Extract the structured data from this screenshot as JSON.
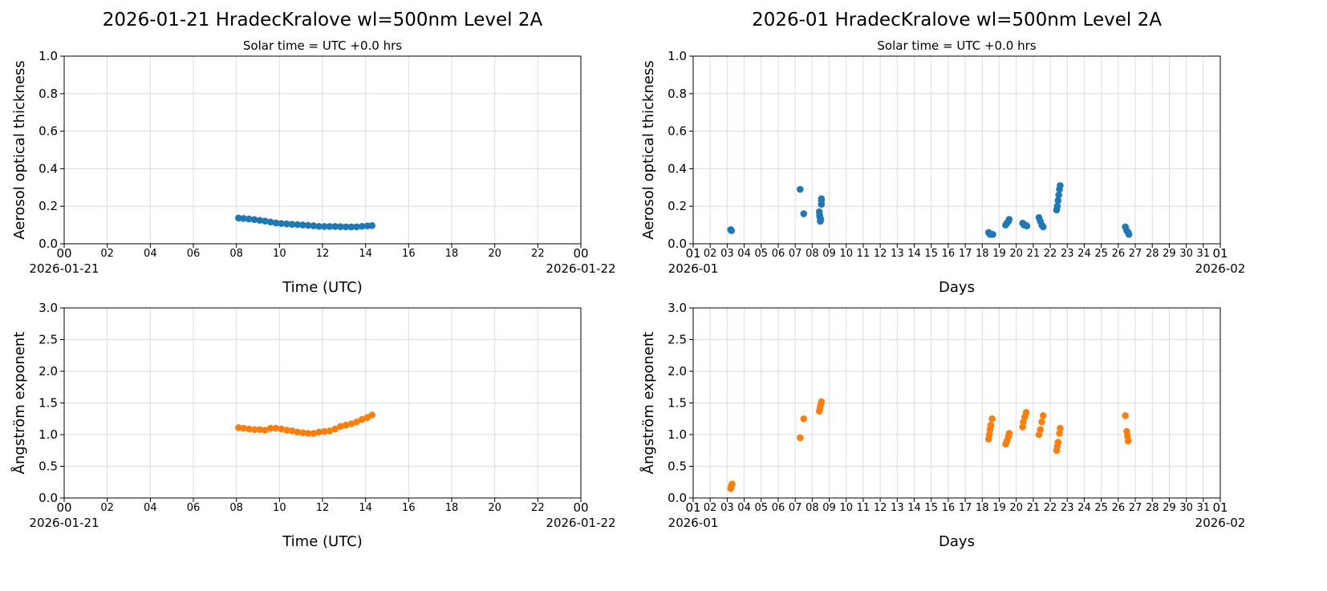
{
  "colors": {
    "aod": "#1f77b4",
    "angstrom": "#ff7f0e"
  },
  "chart_data": [
    {
      "type": "scatter",
      "panel": "left-top",
      "title": "2026-01-21  HradecKralove  wl=500nm  Level 2A",
      "subtitle": "Solar time = UTC +0.0 hrs",
      "xlabel": "Time (UTC)",
      "ylabel": "Aerosol optical thickness",
      "xlim": [
        "00:00",
        "24:00"
      ],
      "ylim": [
        0,
        1
      ],
      "grid": true,
      "xticks": [
        "00",
        "02",
        "04",
        "06",
        "08",
        "10",
        "12",
        "14",
        "16",
        "18",
        "20",
        "22",
        "00"
      ],
      "xdates": [
        "2026-01-21",
        "2026-01-22"
      ],
      "yticks": [
        "0.0",
        "0.2",
        "0.4",
        "0.6",
        "0.8",
        "1.0"
      ],
      "points": [
        [
          "08:06",
          0.137
        ],
        [
          "08:20",
          0.135
        ],
        [
          "08:35",
          0.132
        ],
        [
          "08:50",
          0.129
        ],
        [
          "09:05",
          0.125
        ],
        [
          "09:20",
          0.121
        ],
        [
          "09:35",
          0.116
        ],
        [
          "09:50",
          0.111
        ],
        [
          "10:05",
          0.108
        ],
        [
          "10:20",
          0.106
        ],
        [
          "10:35",
          0.104
        ],
        [
          "10:50",
          0.102
        ],
        [
          "11:05",
          0.1
        ],
        [
          "11:20",
          0.098
        ],
        [
          "11:35",
          0.096
        ],
        [
          "11:50",
          0.093
        ],
        [
          "12:05",
          0.092
        ],
        [
          "12:20",
          0.092
        ],
        [
          "12:35",
          0.092
        ],
        [
          "12:50",
          0.091
        ],
        [
          "13:05",
          0.09
        ],
        [
          "13:20",
          0.09
        ],
        [
          "13:35",
          0.09
        ],
        [
          "13:50",
          0.093
        ],
        [
          "14:05",
          0.095
        ],
        [
          "14:18",
          0.097
        ]
      ]
    },
    {
      "type": "scatter",
      "panel": "right-top",
      "title": "2026-01  HradecKralove  wl=500nm  Level 2A",
      "subtitle": "Solar time = UTC +0.0 hrs",
      "xlabel": "Days",
      "ylabel": "Aerosol optical thickness",
      "xlim": [
        "2026-01-01",
        "2026-02-01"
      ],
      "ylim": [
        0,
        1
      ],
      "grid": true,
      "xticks": [
        "01",
        "02",
        "03",
        "04",
        "05",
        "06",
        "07",
        "08",
        "09",
        "10",
        "11",
        "12",
        "13",
        "14",
        "15",
        "16",
        "17",
        "18",
        "19",
        "20",
        "21",
        "22",
        "23",
        "24",
        "25",
        "26",
        "27",
        "28",
        "29",
        "30",
        "31",
        "01"
      ],
      "xdates": [
        "2026-01",
        "2026-02"
      ],
      "yticks": [
        "0.0",
        "0.2",
        "0.4",
        "0.6",
        "0.8",
        "1.0"
      ],
      "points": [
        [
          "2026-01-03 05:00",
          0.075
        ],
        [
          "2026-01-03 06:00",
          0.07
        ],
        [
          "2026-01-07 07:00",
          0.29
        ],
        [
          "2026-01-07 12:00",
          0.16
        ],
        [
          "2026-01-08 10:00",
          0.17
        ],
        [
          "2026-01-08 10:30",
          0.15
        ],
        [
          "2026-01-08 11:00",
          0.14
        ],
        [
          "2026-01-08 11:30",
          0.12
        ],
        [
          "2026-01-08 12:00",
          0.13
        ],
        [
          "2026-01-08 13:00",
          0.21
        ],
        [
          "2026-01-08 13:00",
          0.24
        ],
        [
          "2026-01-08 13:00",
          0.23
        ],
        [
          "2026-01-18 09:00",
          0.06
        ],
        [
          "2026-01-18 11:00",
          0.05
        ],
        [
          "2026-01-18 13:00",
          0.05
        ],
        [
          "2026-01-18 15:00",
          0.05
        ],
        [
          "2026-01-19 09:00",
          0.1
        ],
        [
          "2026-01-19 11:00",
          0.11
        ],
        [
          "2026-01-19 13:00",
          0.12
        ],
        [
          "2026-01-19 14:00",
          0.13
        ],
        [
          "2026-01-20 09:00",
          0.11
        ],
        [
          "2026-01-20 11:00",
          0.1
        ],
        [
          "2026-01-20 13:00",
          0.1
        ],
        [
          "2026-01-20 15:00",
          0.095
        ],
        [
          "2026-01-21 08:00",
          0.14
        ],
        [
          "2026-01-21 10:00",
          0.12
        ],
        [
          "2026-01-21 12:00",
          0.1
        ],
        [
          "2026-01-21 14:00",
          0.09
        ],
        [
          "2026-01-22 09:00",
          0.18
        ],
        [
          "2026-01-22 10:00",
          0.2
        ],
        [
          "2026-01-22 11:00",
          0.23
        ],
        [
          "2026-01-22 12:00",
          0.26
        ],
        [
          "2026-01-22 13:00",
          0.29
        ],
        [
          "2026-01-22 14:00",
          0.31
        ],
        [
          "2026-01-26 10:00",
          0.09
        ],
        [
          "2026-01-26 12:00",
          0.07
        ],
        [
          "2026-01-26 14:00",
          0.06
        ],
        [
          "2026-01-26 15:00",
          0.05
        ]
      ]
    },
    {
      "type": "scatter",
      "panel": "left-bottom",
      "xlabel": "Time (UTC)",
      "ylabel": "Ångström exponent",
      "xlim": [
        "00:00",
        "24:00"
      ],
      "ylim": [
        0,
        3
      ],
      "grid": true,
      "xticks": [
        "00",
        "02",
        "04",
        "06",
        "08",
        "10",
        "12",
        "14",
        "16",
        "18",
        "20",
        "22",
        "00"
      ],
      "xdates": [
        "2026-01-21",
        "2026-01-22"
      ],
      "yticks": [
        "0.0",
        "0.5",
        "1.0",
        "1.5",
        "2.0",
        "2.5",
        "3.0"
      ],
      "points": [
        [
          "08:06",
          1.11
        ],
        [
          "08:20",
          1.1
        ],
        [
          "08:35",
          1.09
        ],
        [
          "08:50",
          1.08
        ],
        [
          "09:05",
          1.08
        ],
        [
          "09:20",
          1.07
        ],
        [
          "09:35",
          1.1
        ],
        [
          "09:50",
          1.1
        ],
        [
          "10:05",
          1.09
        ],
        [
          "10:20",
          1.07
        ],
        [
          "10:35",
          1.06
        ],
        [
          "10:50",
          1.04
        ],
        [
          "11:05",
          1.03
        ],
        [
          "11:20",
          1.02
        ],
        [
          "11:35",
          1.02
        ],
        [
          "11:50",
          1.04
        ],
        [
          "12:05",
          1.05
        ],
        [
          "12:20",
          1.06
        ],
        [
          "12:35",
          1.09
        ],
        [
          "12:50",
          1.13
        ],
        [
          "13:05",
          1.15
        ],
        [
          "13:20",
          1.17
        ],
        [
          "13:35",
          1.2
        ],
        [
          "13:50",
          1.24
        ],
        [
          "14:05",
          1.27
        ],
        [
          "14:18",
          1.31
        ]
      ]
    },
    {
      "type": "scatter",
      "panel": "right-bottom",
      "xlabel": "Days",
      "ylabel": "Ångström exponent",
      "xlim": [
        "2026-01-01",
        "2026-02-01"
      ],
      "ylim": [
        0,
        3
      ],
      "grid": true,
      "xticks": [
        "01",
        "02",
        "03",
        "04",
        "05",
        "06",
        "07",
        "08",
        "09",
        "10",
        "11",
        "12",
        "13",
        "14",
        "15",
        "16",
        "17",
        "18",
        "19",
        "20",
        "21",
        "22",
        "23",
        "24",
        "25",
        "26",
        "27",
        "28",
        "29",
        "30",
        "31",
        "01"
      ],
      "xdates": [
        "2026-01",
        "2026-02"
      ],
      "yticks": [
        "0.0",
        "0.5",
        "1.0",
        "1.5",
        "2.0",
        "2.5",
        "3.0"
      ],
      "points": [
        [
          "2026-01-03 05:00",
          0.15
        ],
        [
          "2026-01-03 06:00",
          0.2
        ],
        [
          "2026-01-03 07:00",
          0.22
        ],
        [
          "2026-01-07 07:00",
          0.95
        ],
        [
          "2026-01-07 12:00",
          1.25
        ],
        [
          "2026-01-08 10:00",
          1.37
        ],
        [
          "2026-01-08 11:00",
          1.42
        ],
        [
          "2026-01-08 12:00",
          1.47
        ],
        [
          "2026-01-08 13:00",
          1.52
        ],
        [
          "2026-01-18 09:00",
          0.93
        ],
        [
          "2026-01-18 10:00",
          1.0
        ],
        [
          "2026-01-18 11:00",
          1.08
        ],
        [
          "2026-01-18 12:00",
          1.15
        ],
        [
          "2026-01-18 14:00",
          1.25
        ],
        [
          "2026-01-19 09:00",
          0.85
        ],
        [
          "2026-01-19 11:00",
          0.9
        ],
        [
          "2026-01-19 13:00",
          0.97
        ],
        [
          "2026-01-19 14:00",
          1.02
        ],
        [
          "2026-01-20 09:00",
          1.12
        ],
        [
          "2026-01-20 10:00",
          1.2
        ],
        [
          "2026-01-20 12:00",
          1.28
        ],
        [
          "2026-01-20 14:00",
          1.35
        ],
        [
          "2026-01-21 08:00",
          1.0
        ],
        [
          "2026-01-21 10:00",
          1.08
        ],
        [
          "2026-01-21 12:00",
          1.2
        ],
        [
          "2026-01-21 14:00",
          1.3
        ],
        [
          "2026-01-22 09:00",
          0.75
        ],
        [
          "2026-01-22 10:00",
          0.82
        ],
        [
          "2026-01-22 11:00",
          0.88
        ],
        [
          "2026-01-22 13:00",
          1.02
        ],
        [
          "2026-01-22 14:00",
          1.1
        ],
        [
          "2026-01-26 10:00",
          1.3
        ],
        [
          "2026-01-26 12:00",
          1.05
        ],
        [
          "2026-01-26 13:00",
          0.98
        ],
        [
          "2026-01-26 14:00",
          0.9
        ]
      ]
    }
  ]
}
